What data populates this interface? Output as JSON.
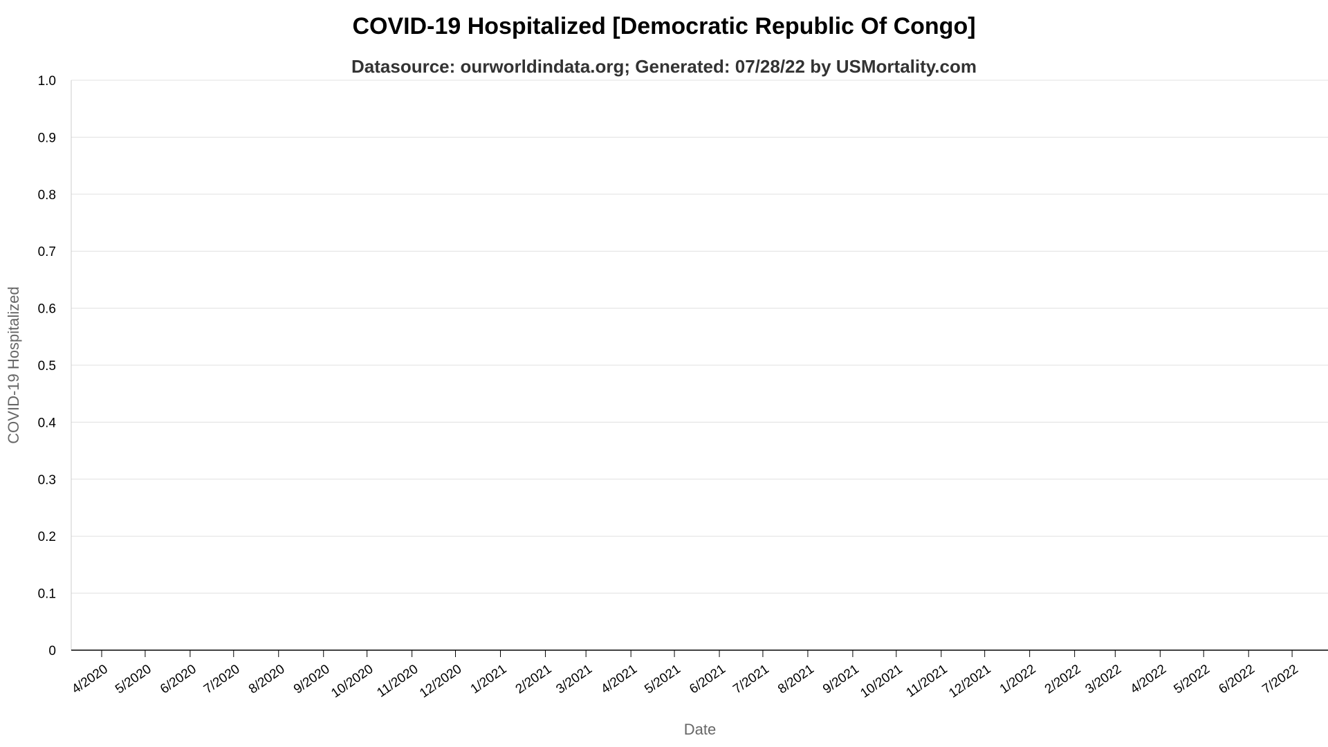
{
  "chart_data": {
    "type": "line",
    "title": "COVID-19 Hospitalized [Democratic Republic Of Congo]",
    "subtitle": "Datasource: ourworldindata.org; Generated: 07/28/22 by USMortality.com",
    "xlabel": "Date",
    "ylabel": "COVID-19 Hospitalized",
    "ylim": [
      0,
      1
    ],
    "y_ticks": [
      "0",
      "0.1",
      "0.2",
      "0.3",
      "0.4",
      "0.5",
      "0.6",
      "0.7",
      "0.8",
      "0.9",
      "1.0"
    ],
    "x_ticks": [
      "4/2020",
      "5/2020",
      "6/2020",
      "7/2020",
      "8/2020",
      "9/2020",
      "10/2020",
      "11/2020",
      "12/2020",
      "1/2021",
      "2/2021",
      "3/2021",
      "4/2021",
      "5/2021",
      "6/2021",
      "7/2021",
      "8/2021",
      "9/2021",
      "10/2021",
      "11/2021",
      "12/2021",
      "1/2022",
      "2/2022",
      "3/2022",
      "4/2022",
      "5/2022",
      "6/2022",
      "7/2022"
    ],
    "grid": true,
    "series": []
  }
}
